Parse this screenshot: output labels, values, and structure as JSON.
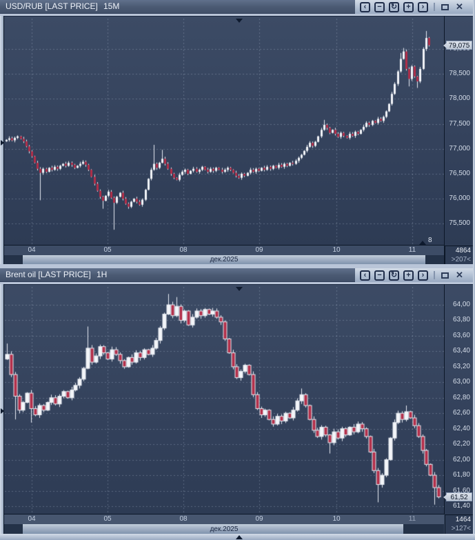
{
  "colors": {
    "up": "#f3f5f9",
    "down": "#b22e49",
    "wick": "#e9edf4",
    "grid": "rgba(205,218,238,0.28)",
    "chart_bg_top": "#3c4b65",
    "chart_bg_bottom": "#2d3b54",
    "frame": "#b9c5d8",
    "titlebar": "#4a5972",
    "tag_bg": "#cfd7e3"
  },
  "toolbar": {
    "scroll_left": "‹",
    "zoom_out": "−",
    "refresh": "↻",
    "zoom_in": "+",
    "scroll_right": "›",
    "close": "✕"
  },
  "panels": [
    {
      "title": "USD/RUB [LAST PRICE]",
      "timeframe": "15M",
      "last_price_label": "79,075",
      "corner": {
        "bars": "4864",
        "range": ">207<"
      },
      "scroll_end_label": "8",
      "chart_data": {
        "type": "candlestick",
        "title": "USD/RUB [LAST PRICE]",
        "interval": "15M",
        "x_day_labels": [
          "04",
          "05",
          "08",
          "09",
          "10",
          "11"
        ],
        "month_label": "дек.2025",
        "y_axis": {
          "texts": [
            "79,000",
            "78,500",
            "78,000",
            "77,500",
            "77,000",
            "76,500",
            "76,000",
            "75,500"
          ],
          "prices": [
            79.0,
            78.5,
            78.0,
            77.5,
            77.0,
            76.5,
            76.0,
            75.5
          ]
        },
        "visible_range": {
          "y_min": 75.08,
          "y_max": 79.61
        },
        "last_price": 79.075,
        "open_start": 77.15,
        "closes": [
          77.18,
          77.21,
          77.17,
          77.22,
          77.25,
          77.2,
          77.15,
          77.05,
          76.95,
          76.85,
          76.72,
          76.6,
          76.52,
          76.6,
          76.54,
          76.62,
          76.58,
          76.64,
          76.6,
          76.66,
          76.7,
          76.66,
          76.72,
          76.68,
          76.62,
          76.66,
          76.7,
          76.74,
          76.68,
          76.58,
          76.44,
          76.3,
          76.16,
          76.04,
          75.96,
          76.06,
          76.14,
          76.02,
          75.92,
          76.04,
          76.12,
          76.0,
          75.9,
          75.84,
          75.94,
          76.0,
          75.94,
          75.88,
          75.98,
          76.18,
          76.4,
          76.58,
          76.7,
          76.62,
          76.72,
          76.8,
          76.7,
          76.6,
          76.5,
          76.42,
          76.38,
          76.48,
          76.54,
          76.58,
          76.5,
          76.56,
          76.6,
          76.54,
          76.58,
          76.64,
          76.58,
          76.54,
          76.6,
          76.56,
          76.62,
          76.58,
          76.54,
          76.58,
          76.62,
          76.58,
          76.52,
          76.46,
          76.42,
          76.5,
          76.46,
          76.52,
          76.58,
          76.54,
          76.6,
          76.56,
          76.62,
          76.58,
          76.64,
          76.6,
          76.66,
          76.62,
          76.68,
          76.64,
          76.7,
          76.66,
          76.72,
          76.7,
          76.76,
          76.82,
          76.88,
          76.96,
          77.04,
          77.12,
          77.06,
          77.14,
          77.25,
          77.38,
          77.48,
          77.42,
          77.32,
          77.38,
          77.3,
          77.24,
          77.32,
          77.26,
          77.22,
          77.3,
          77.26,
          77.34,
          77.3,
          77.38,
          77.44,
          77.52,
          77.48,
          77.56,
          77.52,
          77.6,
          77.56,
          77.64,
          77.75,
          77.9,
          78.1,
          78.3,
          78.55,
          78.8,
          78.95,
          78.6,
          78.4,
          78.65,
          78.45,
          78.35,
          78.6,
          79.0,
          79.22,
          79.075
        ],
        "spikes": {
          "12": {
            "l": 75.97
          },
          "34": {
            "l": 75.8
          },
          "38": {
            "l": 75.38
          },
          "52": {
            "h": 77.08
          },
          "55": {
            "h": 76.98
          },
          "112": {
            "h": 77.58
          },
          "139": {
            "h": 78.92
          },
          "140": {
            "h": 79.02
          },
          "142": {
            "l": 78.25
          },
          "145": {
            "l": 78.22
          },
          "148": {
            "h": 79.36
          }
        }
      }
    },
    {
      "title": "Brent oil [LAST PRICE]",
      "timeframe": "1H",
      "last_price_label": "61,52",
      "corner": {
        "bars": "1464",
        "range": ">127<"
      },
      "chart_data": {
        "type": "candlestick",
        "title": "Brent oil [LAST PRICE]",
        "interval": "1H",
        "x_day_labels": [
          "04",
          "05",
          "08",
          "09",
          "10",
          "11"
        ],
        "month_label": "дек.2025",
        "y_axis": {
          "texts": [
            "64,00",
            "63,80",
            "63,60",
            "63,40",
            "63,20",
            "63,00",
            "62,80",
            "62,60",
            "62,40",
            "62,20",
            "62,00",
            "61,80",
            "61,60",
            "61,40"
          ],
          "prices": [
            64.0,
            63.8,
            63.6,
            63.4,
            63.2,
            63.0,
            62.8,
            62.6,
            62.4,
            62.2,
            62.0,
            61.8,
            61.6,
            61.4
          ]
        },
        "visible_range": {
          "y_min": 61.29,
          "y_max": 64.23
        },
        "last_price": 61.52,
        "open_start": 63.3,
        "closes": [
          63.36,
          63.1,
          62.82,
          62.64,
          62.74,
          62.86,
          62.66,
          62.58,
          62.7,
          62.64,
          62.74,
          62.8,
          62.72,
          62.82,
          62.88,
          62.8,
          62.9,
          62.96,
          63.04,
          63.18,
          63.44,
          63.26,
          63.34,
          63.46,
          63.38,
          63.3,
          63.42,
          63.36,
          63.28,
          63.2,
          63.32,
          63.26,
          63.38,
          63.32,
          63.42,
          63.36,
          63.44,
          63.54,
          63.7,
          63.88,
          64.0,
          63.86,
          63.98,
          63.8,
          63.92,
          63.74,
          63.84,
          63.92,
          63.86,
          63.94,
          63.88,
          63.92,
          63.84,
          63.78,
          63.56,
          63.38,
          63.2,
          63.06,
          63.14,
          63.22,
          63.1,
          62.84,
          62.66,
          62.58,
          62.64,
          62.52,
          62.46,
          62.56,
          62.5,
          62.6,
          62.54,
          62.64,
          62.76,
          62.84,
          62.7,
          62.52,
          62.38,
          62.3,
          62.42,
          62.32,
          62.22,
          62.36,
          62.28,
          62.4,
          62.32,
          62.42,
          62.36,
          62.46,
          62.4,
          62.3,
          62.1,
          61.86,
          61.68,
          61.8,
          62.0,
          62.28,
          62.48,
          62.6,
          62.52,
          62.62,
          62.54,
          62.44,
          62.3,
          62.12,
          61.94,
          61.8,
          61.64,
          61.52
        ],
        "spikes": {
          "0": {
            "h": 63.5
          },
          "2": {
            "l": 62.52
          },
          "6": {
            "l": 62.48
          },
          "20": {
            "h": 63.72
          },
          "40": {
            "h": 64.14
          },
          "42": {
            "h": 64.1
          },
          "73": {
            "h": 62.92
          },
          "80": {
            "l": 62.08
          },
          "92": {
            "l": 61.45
          },
          "99": {
            "h": 62.7
          },
          "106": {
            "l": 61.42
          }
        }
      }
    }
  ]
}
